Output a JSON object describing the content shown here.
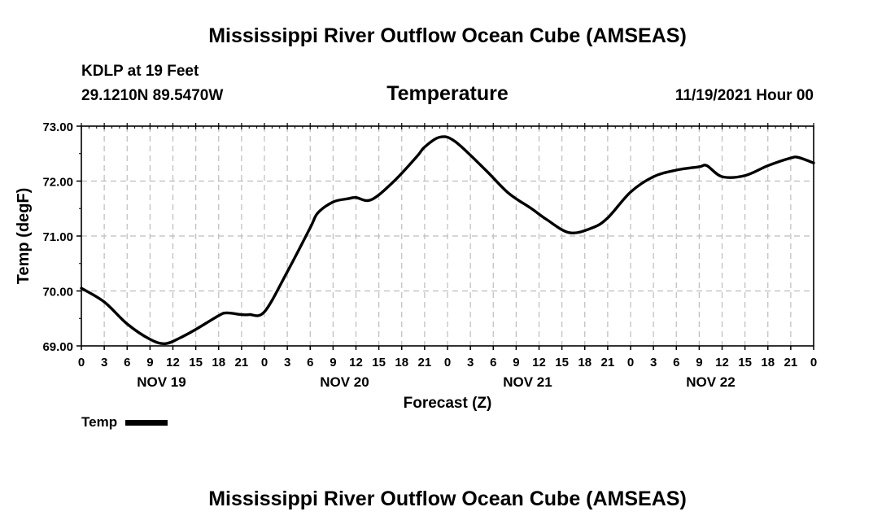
{
  "header": {
    "title": "Mississippi River Outflow Ocean Cube (AMSEAS)",
    "station": "KDLP at 19 Feet",
    "coords": "29.1210N  89.5470W",
    "variable": "Temperature",
    "date": "11/19/2021 Hour 00"
  },
  "footer": {
    "title": "Mississippi River Outflow Ocean Cube (AMSEAS)"
  },
  "legend": {
    "label": "Temp"
  },
  "colors": {
    "line": "#000000",
    "grid": "#bdbdbd"
  },
  "chart_data": {
    "type": "line",
    "title": "Temperature",
    "xlabel": "Forecast (Z)",
    "ylabel": "Temp (degF)",
    "ylim": [
      69.0,
      73.0
    ],
    "xlim": [
      0,
      96
    ],
    "y_ticks": [
      "69.00",
      "70.00",
      "71.00",
      "72.00",
      "73.00"
    ],
    "x_ticks": [
      "0",
      "3",
      "6",
      "9",
      "12",
      "15",
      "18",
      "21",
      "0",
      "3",
      "6",
      "9",
      "12",
      "15",
      "18",
      "21",
      "0",
      "3",
      "6",
      "9",
      "12",
      "15",
      "18",
      "21",
      "0",
      "3",
      "6",
      "9",
      "12",
      "15",
      "18",
      "21",
      "0"
    ],
    "day_labels": [
      "NOV 19",
      "NOV 20",
      "NOV 21",
      "NOV 22"
    ],
    "grid": true,
    "series": [
      {
        "name": "Temp",
        "x": [
          0,
          3,
          6,
          9,
          11,
          13,
          15,
          18,
          19,
          21,
          22,
          24,
          27,
          30,
          31,
          33,
          35,
          36,
          38,
          41,
          44,
          45,
          47,
          49,
          53,
          56,
          59,
          61,
          64,
          67,
          69,
          72,
          75,
          78,
          81,
          82,
          84,
          87,
          90,
          93,
          94,
          96
        ],
        "values": [
          70.05,
          69.8,
          69.4,
          69.12,
          69.04,
          69.15,
          69.3,
          69.55,
          69.6,
          69.57,
          69.57,
          69.62,
          70.35,
          71.15,
          71.42,
          71.62,
          71.68,
          71.7,
          71.66,
          72.0,
          72.45,
          72.62,
          72.8,
          72.72,
          72.2,
          71.78,
          71.5,
          71.3,
          71.06,
          71.15,
          71.33,
          71.8,
          72.08,
          72.2,
          72.26,
          72.28,
          72.08,
          72.1,
          72.28,
          72.42,
          72.43,
          72.33
        ]
      }
    ],
    "legend_position": "bottom-left"
  }
}
